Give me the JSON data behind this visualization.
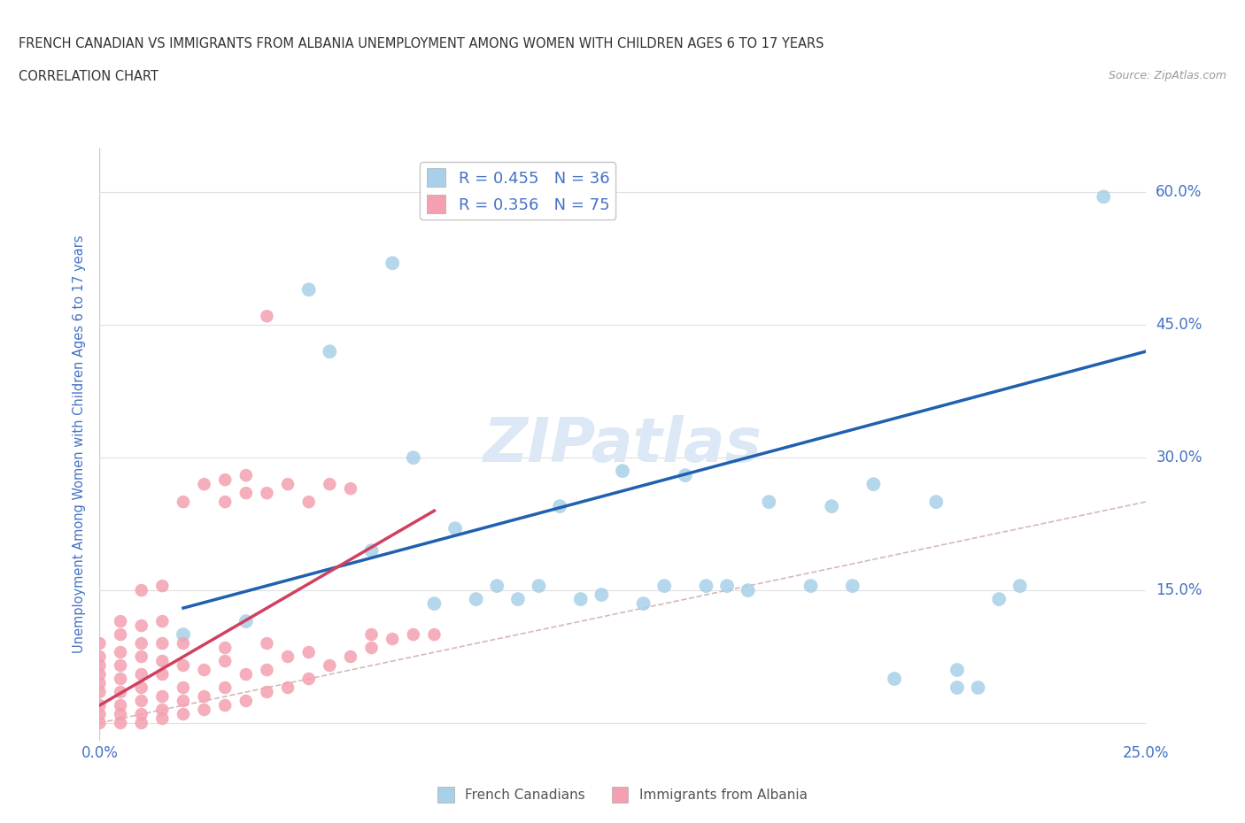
{
  "title_line1": "FRENCH CANADIAN VS IMMIGRANTS FROM ALBANIA UNEMPLOYMENT AMONG WOMEN WITH CHILDREN AGES 6 TO 17 YEARS",
  "title_line2": "CORRELATION CHART",
  "source": "Source: ZipAtlas.com",
  "ylabel": "Unemployment Among Women with Children Ages 6 to 17 years",
  "xlim": [
    0.0,
    0.25
  ],
  "ylim": [
    -0.02,
    0.65
  ],
  "r_blue": 0.455,
  "n_blue": 36,
  "r_pink": 0.356,
  "n_pink": 75,
  "blue_color": "#a8d0e8",
  "pink_color": "#f4a0b0",
  "trend_blue_color": "#2060b0",
  "trend_pink_color": "#d04060",
  "diagonal_color": "#d0b0b8",
  "background_color": "#ffffff",
  "grid_color": "#e0e0e0",
  "axis_color": "#4472c4",
  "watermark": "ZIPatlas",
  "watermark_color": "#dce8f5",
  "blue_x": [
    0.02,
    0.035,
    0.05,
    0.055,
    0.065,
    0.07,
    0.075,
    0.08,
    0.085,
    0.09,
    0.095,
    0.1,
    0.105,
    0.11,
    0.115,
    0.12,
    0.125,
    0.13,
    0.135,
    0.14,
    0.145,
    0.15,
    0.155,
    0.16,
    0.17,
    0.175,
    0.18,
    0.185,
    0.19,
    0.2,
    0.205,
    0.21,
    0.22,
    0.24,
    0.205,
    0.215
  ],
  "blue_y": [
    0.1,
    0.115,
    0.49,
    0.42,
    0.195,
    0.52,
    0.3,
    0.135,
    0.22,
    0.14,
    0.155,
    0.14,
    0.155,
    0.245,
    0.14,
    0.145,
    0.285,
    0.135,
    0.155,
    0.28,
    0.155,
    0.155,
    0.15,
    0.25,
    0.155,
    0.245,
    0.155,
    0.27,
    0.05,
    0.25,
    0.06,
    0.04,
    0.155,
    0.595,
    0.04,
    0.14
  ],
  "pink_x": [
    0.0,
    0.0,
    0.0,
    0.0,
    0.0,
    0.0,
    0.0,
    0.0,
    0.0,
    0.005,
    0.005,
    0.005,
    0.005,
    0.005,
    0.005,
    0.005,
    0.005,
    0.005,
    0.01,
    0.01,
    0.01,
    0.01,
    0.01,
    0.01,
    0.01,
    0.01,
    0.01,
    0.015,
    0.015,
    0.015,
    0.015,
    0.015,
    0.015,
    0.015,
    0.015,
    0.02,
    0.02,
    0.02,
    0.02,
    0.02,
    0.02,
    0.025,
    0.025,
    0.025,
    0.025,
    0.03,
    0.03,
    0.03,
    0.03,
    0.03,
    0.03,
    0.035,
    0.035,
    0.035,
    0.035,
    0.04,
    0.04,
    0.04,
    0.04,
    0.04,
    0.045,
    0.045,
    0.045,
    0.05,
    0.05,
    0.05,
    0.055,
    0.055,
    0.06,
    0.06,
    0.065,
    0.065,
    0.07,
    0.075,
    0.08
  ],
  "pink_y": [
    0.0,
    0.01,
    0.02,
    0.035,
    0.045,
    0.055,
    0.065,
    0.075,
    0.09,
    0.0,
    0.01,
    0.02,
    0.035,
    0.05,
    0.065,
    0.08,
    0.1,
    0.115,
    0.0,
    0.01,
    0.025,
    0.04,
    0.055,
    0.075,
    0.09,
    0.11,
    0.15,
    0.005,
    0.015,
    0.03,
    0.055,
    0.07,
    0.09,
    0.115,
    0.155,
    0.01,
    0.025,
    0.04,
    0.065,
    0.09,
    0.25,
    0.015,
    0.03,
    0.06,
    0.27,
    0.02,
    0.04,
    0.07,
    0.085,
    0.25,
    0.275,
    0.025,
    0.055,
    0.26,
    0.28,
    0.035,
    0.06,
    0.09,
    0.26,
    0.46,
    0.04,
    0.075,
    0.27,
    0.05,
    0.08,
    0.25,
    0.065,
    0.27,
    0.075,
    0.265,
    0.085,
    0.1,
    0.095,
    0.1,
    0.1
  ],
  "blue_trend_x": [
    0.02,
    0.25
  ],
  "blue_trend_y": [
    0.13,
    0.42
  ],
  "pink_trend_x": [
    0.0,
    0.08
  ],
  "pink_trend_y": [
    0.02,
    0.24
  ]
}
